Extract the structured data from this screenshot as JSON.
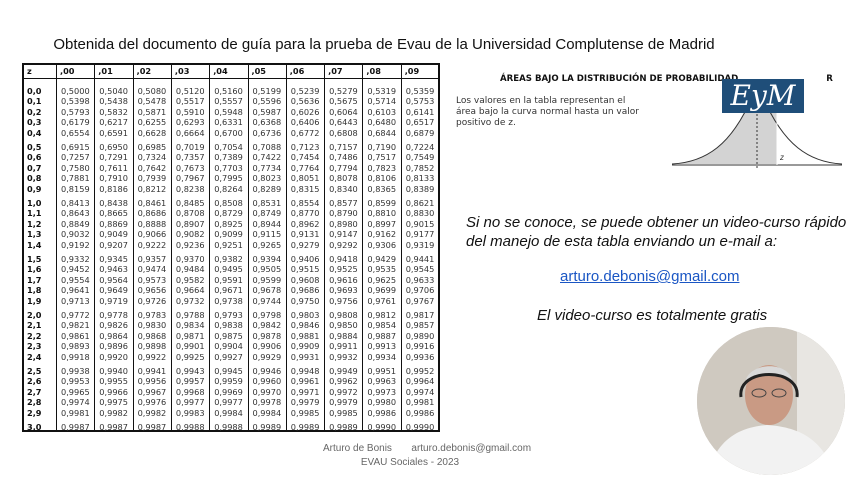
{
  "title": "Obtenida del documento de guía para la prueba de Evau de la Universidad Complutense de Madrid",
  "table": {
    "header": [
      "z",
      ",00",
      ",01",
      ",02",
      ",03",
      ",04",
      ",05",
      ",06",
      ",07",
      ",08",
      ",09"
    ],
    "rows": [
      {
        "z": "0,0",
        "values": [
          "0,5000",
          "0,5040",
          "0,5080",
          "0,5120",
          "0,5160",
          "0,5199",
          "0,5239",
          "0,5279",
          "0,5319",
          "0,5359"
        ]
      },
      {
        "z": "0,1",
        "values": [
          "0,5398",
          "0,5438",
          "0,5478",
          "0,5517",
          "0,5557",
          "0,5596",
          "0,5636",
          "0,5675",
          "0,5714",
          "0,5753"
        ]
      },
      {
        "z": "0,2",
        "values": [
          "0,5793",
          "0,5832",
          "0,5871",
          "0,5910",
          "0,5948",
          "0,5987",
          "0,6026",
          "0,6064",
          "0,6103",
          "0,6141"
        ]
      },
      {
        "z": "0,3",
        "values": [
          "0,6179",
          "0,6217",
          "0,6255",
          "0,6293",
          "0,6331",
          "0,6368",
          "0,6406",
          "0,6443",
          "0,6480",
          "0,6517"
        ]
      },
      {
        "z": "0,4",
        "values": [
          "0,6554",
          "0,6591",
          "0,6628",
          "0,6664",
          "0,6700",
          "0,6736",
          "0,6772",
          "0,6808",
          "0,6844",
          "0,6879"
        ]
      },
      {
        "z": "0,5",
        "values": [
          "0,6915",
          "0,6950",
          "0,6985",
          "0,7019",
          "0,7054",
          "0,7088",
          "0,7123",
          "0,7157",
          "0,7190",
          "0,7224"
        ]
      },
      {
        "z": "0,6",
        "values": [
          "0,7257",
          "0,7291",
          "0,7324",
          "0,7357",
          "0,7389",
          "0,7422",
          "0,7454",
          "0,7486",
          "0,7517",
          "0,7549"
        ]
      },
      {
        "z": "0,7",
        "values": [
          "0,7580",
          "0,7611",
          "0,7642",
          "0,7673",
          "0,7703",
          "0,7734",
          "0,7764",
          "0,7794",
          "0,7823",
          "0,7852"
        ]
      },
      {
        "z": "0,8",
        "values": [
          "0,7881",
          "0,7910",
          "0,7939",
          "0,7967",
          "0,7995",
          "0,8023",
          "0,8051",
          "0,8078",
          "0,8106",
          "0,8133"
        ]
      },
      {
        "z": "0,9",
        "values": [
          "0,8159",
          "0,8186",
          "0,8212",
          "0,8238",
          "0,8264",
          "0,8289",
          "0,8315",
          "0,8340",
          "0,8365",
          "0,8389"
        ]
      },
      {
        "z": "1,0",
        "values": [
          "0,8413",
          "0,8438",
          "0,8461",
          "0,8485",
          "0,8508",
          "0,8531",
          "0,8554",
          "0,8577",
          "0,8599",
          "0,8621"
        ]
      },
      {
        "z": "1,1",
        "values": [
          "0,8643",
          "0,8665",
          "0,8686",
          "0,8708",
          "0,8729",
          "0,8749",
          "0,8770",
          "0,8790",
          "0,8810",
          "0,8830"
        ]
      },
      {
        "z": "1,2",
        "values": [
          "0,8849",
          "0,8869",
          "0,8888",
          "0,8907",
          "0,8925",
          "0,8944",
          "0,8962",
          "0,8980",
          "0,8997",
          "0,9015"
        ]
      },
      {
        "z": "1,3",
        "values": [
          "0,9032",
          "0,9049",
          "0,9066",
          "0,9082",
          "0,9099",
          "0,9115",
          "0,9131",
          "0,9147",
          "0,9162",
          "0,9177"
        ]
      },
      {
        "z": "1,4",
        "values": [
          "0,9192",
          "0,9207",
          "0,9222",
          "0,9236",
          "0,9251",
          "0,9265",
          "0,9279",
          "0,9292",
          "0,9306",
          "0,9319"
        ]
      },
      {
        "z": "1,5",
        "values": [
          "0,9332",
          "0,9345",
          "0,9357",
          "0,9370",
          "0,9382",
          "0,9394",
          "0,9406",
          "0,9418",
          "0,9429",
          "0,9441"
        ]
      },
      {
        "z": "1,6",
        "values": [
          "0,9452",
          "0,9463",
          "0,9474",
          "0,9484",
          "0,9495",
          "0,9505",
          "0,9515",
          "0,9525",
          "0,9535",
          "0,9545"
        ]
      },
      {
        "z": "1,7",
        "values": [
          "0,9554",
          "0,9564",
          "0,9573",
          "0,9582",
          "0,9591",
          "0,9599",
          "0,9608",
          "0,9616",
          "0,9625",
          "0,9633"
        ]
      },
      {
        "z": "1,8",
        "values": [
          "0,9641",
          "0,9649",
          "0,9656",
          "0,9664",
          "0,9671",
          "0,9678",
          "0,9686",
          "0,9693",
          "0,9699",
          "0,9706"
        ]
      },
      {
        "z": "1,9",
        "values": [
          "0,9713",
          "0,9719",
          "0,9726",
          "0,9732",
          "0,9738",
          "0,9744",
          "0,9750",
          "0,9756",
          "0,9761",
          "0,9767"
        ]
      },
      {
        "z": "2,0",
        "values": [
          "0,9772",
          "0,9778",
          "0,9783",
          "0,9788",
          "0,9793",
          "0,9798",
          "0,9803",
          "0,9808",
          "0,9812",
          "0,9817"
        ]
      },
      {
        "z": "2,1",
        "values": [
          "0,9821",
          "0,9826",
          "0,9830",
          "0,9834",
          "0,9838",
          "0,9842",
          "0,9846",
          "0,9850",
          "0,9854",
          "0,9857"
        ]
      },
      {
        "z": "2,2",
        "values": [
          "0,9861",
          "0,9864",
          "0,9868",
          "0,9871",
          "0,9875",
          "0,9878",
          "0,9881",
          "0,9884",
          "0,9887",
          "0,9890"
        ]
      },
      {
        "z": "2,3",
        "values": [
          "0,9893",
          "0,9896",
          "0,9898",
          "0,9901",
          "0,9904",
          "0,9906",
          "0,9909",
          "0,9911",
          "0,9913",
          "0,9916"
        ]
      },
      {
        "z": "2,4",
        "values": [
          "0,9918",
          "0,9920",
          "0,9922",
          "0,9925",
          "0,9927",
          "0,9929",
          "0,9931",
          "0,9932",
          "0,9934",
          "0,9936"
        ]
      },
      {
        "z": "2,5",
        "values": [
          "0,9938",
          "0,9940",
          "0,9941",
          "0,9943",
          "0,9945",
          "0,9946",
          "0,9948",
          "0,9949",
          "0,9951",
          "0,9952"
        ]
      },
      {
        "z": "2,6",
        "values": [
          "0,9953",
          "0,9955",
          "0,9956",
          "0,9957",
          "0,9959",
          "0,9960",
          "0,9961",
          "0,9962",
          "0,9963",
          "0,9964"
        ]
      },
      {
        "z": "2,7",
        "values": [
          "0,9965",
          "0,9966",
          "0,9967",
          "0,9968",
          "0,9969",
          "0,9970",
          "0,9971",
          "0,9972",
          "0,9973",
          "0,9974"
        ]
      },
      {
        "z": "2,8",
        "values": [
          "0,9974",
          "0,9975",
          "0,9976",
          "0,9977",
          "0,9977",
          "0,9978",
          "0,9979",
          "0,9979",
          "0,9980",
          "0,9981"
        ]
      },
      {
        "z": "2,9",
        "values": [
          "0,9981",
          "0,9982",
          "0,9982",
          "0,9983",
          "0,9984",
          "0,9984",
          "0,9985",
          "0,9985",
          "0,9986",
          "0,9986"
        ]
      },
      {
        "z": "3,0",
        "values": [
          "0,9987",
          "0,9987",
          "0,9987",
          "0,9988",
          "0,9988",
          "0,9989",
          "0,9989",
          "0,9989",
          "0,9990",
          "0,9990"
        ]
      }
    ]
  },
  "areas": {
    "title": "ÁREAS BAJO LA DISTRIBUCIÓN DE PROBABILIDAD",
    "title_tail": "R",
    "description": "Los valores en la tabla representan el área bajo la curva normal hasta un valor positivo de z.",
    "curve_label": "z"
  },
  "logo": {
    "text": "EyM",
    "color": "#1f4e79"
  },
  "promo": {
    "line1": "Si no se conoce, se puede obtener un video-curso rápido",
    "line2": "del manejo de esta tabla enviando un e-mail a:",
    "email": "arturo.debonis@gmail.com",
    "free": "El video-curso es totalmente gratis"
  },
  "footer": {
    "author": "Arturo de Bonis",
    "email": "arturo.debonis@gmail.com",
    "course": "EVAU Sociales - 2023"
  }
}
